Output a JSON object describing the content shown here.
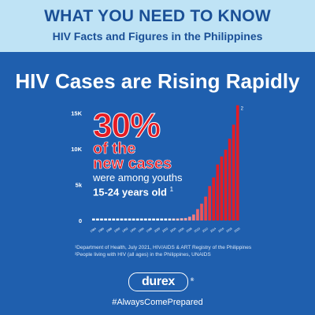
{
  "banner": {
    "title": "WHAT YOU NEED TO KNOW",
    "subtitle": "HIV Facts and Figures in the Philippines"
  },
  "headline": "HIV Cases are Rising Rapidly",
  "callout": {
    "percent": "30%",
    "line1": "of the",
    "line2": "new cases",
    "line3": "were among youths",
    "line4": "15-24 years old",
    "footnote_mark": "1"
  },
  "chart_data": {
    "type": "bar",
    "categories": [
      "1984",
      "1985",
      "1986",
      "1987",
      "1988",
      "1989",
      "1990",
      "1991",
      "1992",
      "1993",
      "1994",
      "1995",
      "1996",
      "1997",
      "1998",
      "1999",
      "2000",
      "2001",
      "2002",
      "2003",
      "2004",
      "2005",
      "2006",
      "2007",
      "2008",
      "2009",
      "2010",
      "2011",
      "2012",
      "2013",
      "2014",
      "2015",
      "2016",
      "2017",
      "2018",
      "2019",
      "2020"
    ],
    "tick_labels": [
      "1984",
      "1986",
      "1988",
      "1990",
      "1992",
      "1994",
      "1996",
      "1998",
      "2000",
      "2002",
      "2004",
      "2006",
      "2008",
      "2010",
      "2012",
      "2014",
      "2016",
      "2018",
      "2020"
    ],
    "values": [
      2,
      10,
      29,
      38,
      29,
      30,
      66,
      85,
      72,
      117,
      123,
      116,
      125,
      118,
      189,
      159,
      123,
      174,
      184,
      193,
      199,
      210,
      309,
      342,
      528,
      835,
      1591,
      2349,
      3338,
      4814,
      6011,
      7829,
      8945,
      9897,
      11426,
      13384,
      16100
    ],
    "yticks": [
      "0",
      "5k",
      "10K",
      "15K"
    ],
    "ytick_values": [
      0,
      5000,
      10000,
      15000
    ],
    "ylim": [
      0,
      16500
    ],
    "last_bar_label": "2",
    "colors": {
      "early": "#ffffff",
      "late": "#e51c24",
      "axis_text": "#ffffff"
    }
  },
  "footnotes": {
    "note1": "¹Department of Health, July 2021, HIV/AIDS & ART Registry of the Philippines",
    "note2": "²People living with HIV (all ages) in the Philippines, UNAIDS"
  },
  "brand": {
    "logo_text": "durex",
    "reg_mark": "®",
    "hashtag": "#AlwaysComePrepared"
  }
}
